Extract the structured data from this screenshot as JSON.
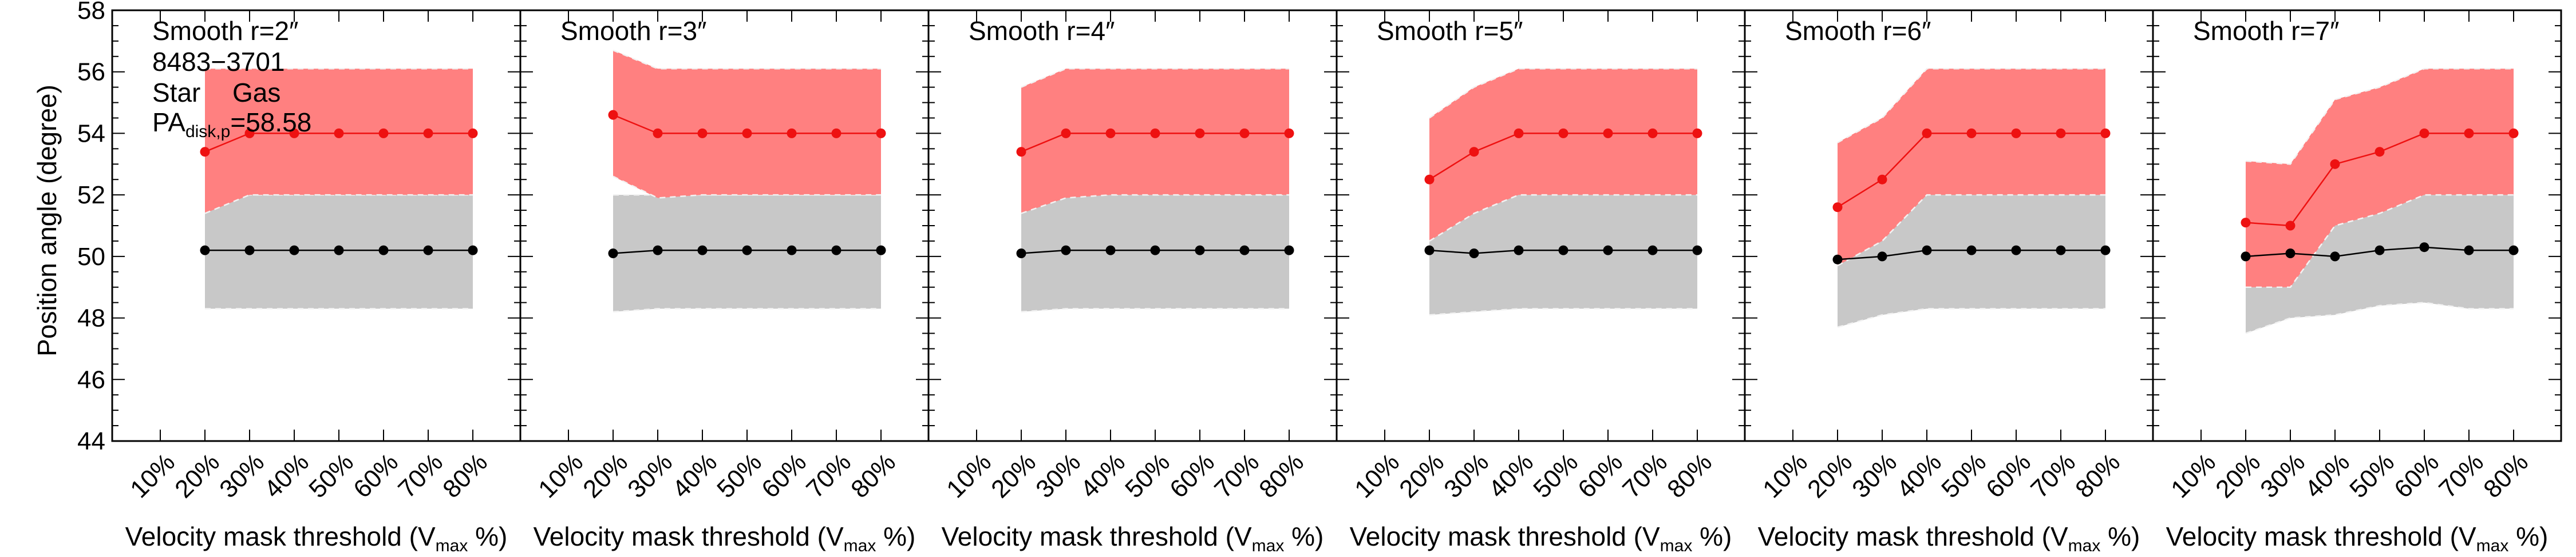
{
  "chart_data": {
    "type": "line",
    "layout": "6 panels side by side, shared y axis",
    "x_categories": [
      "10%",
      "20%",
      "30%",
      "40%",
      "50%",
      "60%",
      "70%",
      "80%"
    ],
    "xlabel_prefix": "Velocity mask threshold (V",
    "xlabel_sub": "max",
    "xlabel_suffix": " %)",
    "ylabel": "Position angle (degree)",
    "ylim": [
      44,
      58
    ],
    "yticks": [
      "44",
      "46",
      "48",
      "50",
      "52",
      "54",
      "56",
      "58"
    ],
    "annotations": {
      "galaxy_id": "8483−3701",
      "star_label": "Star",
      "gas_label": "Gas",
      "pa_prefix": "PA",
      "pa_sub": "disk,p",
      "pa_suffix": "=58.58"
    },
    "colors": {
      "star": "#000000",
      "star_band": "#c8c8c8",
      "gas": "#ee1111",
      "gas_band": "#ff8080",
      "dashed": "#f2f2f2"
    },
    "panels": [
      {
        "title": "Smooth r=2″",
        "star": {
          "x": [
            "20%",
            "30%",
            "40%",
            "50%",
            "60%",
            "70%",
            "80%"
          ],
          "values": [
            50.2,
            50.2,
            50.2,
            50.2,
            50.2,
            50.2,
            50.2
          ],
          "band_low": [
            48.3,
            48.3,
            48.3,
            48.3,
            48.3,
            48.3,
            48.3
          ],
          "band_high": [
            52.0,
            52.0,
            52.0,
            52.0,
            52.0,
            52.0,
            52.0
          ]
        },
        "gas": {
          "x": [
            "20%",
            "30%",
            "40%",
            "50%",
            "60%",
            "70%",
            "80%"
          ],
          "values": [
            53.4,
            54.0,
            54.0,
            54.0,
            54.0,
            54.0,
            54.0
          ],
          "band_low": [
            51.4,
            52.0,
            52.0,
            52.0,
            52.0,
            52.0,
            52.0
          ],
          "band_high": [
            56.1,
            56.1,
            56.1,
            56.1,
            56.1,
            56.1,
            56.1
          ]
        }
      },
      {
        "title": "Smooth r=3″",
        "star": {
          "x": [
            "20%",
            "30%",
            "40%",
            "50%",
            "60%",
            "70%",
            "80%"
          ],
          "values": [
            50.1,
            50.2,
            50.2,
            50.2,
            50.2,
            50.2,
            50.2
          ],
          "band_low": [
            48.2,
            48.3,
            48.3,
            48.3,
            48.3,
            48.3,
            48.3
          ],
          "band_high": [
            52.0,
            52.0,
            52.0,
            52.0,
            52.0,
            52.0,
            52.0
          ]
        },
        "gas": {
          "x": [
            "20%",
            "30%",
            "40%",
            "50%",
            "60%",
            "70%",
            "80%"
          ],
          "values": [
            54.6,
            54.0,
            54.0,
            54.0,
            54.0,
            54.0,
            54.0
          ],
          "band_low": [
            52.6,
            51.9,
            52.0,
            52.0,
            52.0,
            52.0,
            52.0
          ],
          "band_high": [
            56.7,
            56.1,
            56.1,
            56.1,
            56.1,
            56.1,
            56.1
          ]
        }
      },
      {
        "title": "Smooth r=4″",
        "star": {
          "x": [
            "20%",
            "30%",
            "40%",
            "50%",
            "60%",
            "70%",
            "80%"
          ],
          "values": [
            50.1,
            50.2,
            50.2,
            50.2,
            50.2,
            50.2,
            50.2
          ],
          "band_low": [
            48.2,
            48.3,
            48.3,
            48.3,
            48.3,
            48.3,
            48.3
          ],
          "band_high": [
            51.6,
            52.0,
            52.0,
            52.0,
            52.0,
            52.0,
            52.0
          ]
        },
        "gas": {
          "x": [
            "20%",
            "30%",
            "40%",
            "50%",
            "60%",
            "70%",
            "80%"
          ],
          "values": [
            53.4,
            54.0,
            54.0,
            54.0,
            54.0,
            54.0,
            54.0
          ],
          "band_low": [
            51.4,
            51.9,
            52.0,
            52.0,
            52.0,
            52.0,
            52.0
          ],
          "band_high": [
            55.5,
            56.1,
            56.1,
            56.1,
            56.1,
            56.1,
            56.1
          ]
        }
      },
      {
        "title": "Smooth r=5″",
        "star": {
          "x": [
            "20%",
            "30%",
            "40%",
            "50%",
            "60%",
            "70%",
            "80%"
          ],
          "values": [
            50.2,
            50.1,
            50.2,
            50.2,
            50.2,
            50.2,
            50.2
          ],
          "band_low": [
            48.1,
            48.2,
            48.3,
            48.3,
            48.3,
            48.3,
            48.3
          ],
          "band_high": [
            50.5,
            51.4,
            52.0,
            52.0,
            52.0,
            52.0,
            52.0
          ]
        },
        "gas": {
          "x": [
            "20%",
            "30%",
            "40%",
            "50%",
            "60%",
            "70%",
            "80%"
          ],
          "values": [
            52.5,
            53.4,
            54.0,
            54.0,
            54.0,
            54.0,
            54.0
          ],
          "band_low": [
            50.5,
            51.4,
            52.0,
            52.0,
            52.0,
            52.0,
            52.0
          ],
          "band_high": [
            54.5,
            55.5,
            56.1,
            56.1,
            56.1,
            56.1,
            56.1
          ]
        }
      },
      {
        "title": "Smooth r=6″",
        "star": {
          "x": [
            "20%",
            "30%",
            "40%",
            "50%",
            "60%",
            "70%",
            "80%"
          ],
          "values": [
            49.9,
            50.0,
            50.2,
            50.2,
            50.2,
            50.2,
            50.2
          ],
          "band_low": [
            47.7,
            48.1,
            48.3,
            48.3,
            48.3,
            48.3,
            48.3
          ],
          "band_high": [
            49.7,
            50.5,
            52.0,
            52.0,
            52.0,
            52.0,
            52.0
          ]
        },
        "gas": {
          "x": [
            "20%",
            "30%",
            "40%",
            "50%",
            "60%",
            "70%",
            "80%"
          ],
          "values": [
            51.6,
            52.5,
            54.0,
            54.0,
            54.0,
            54.0,
            54.0
          ],
          "band_low": [
            49.7,
            50.5,
            52.0,
            52.0,
            52.0,
            52.0,
            52.0
          ],
          "band_high": [
            53.7,
            54.5,
            56.1,
            56.1,
            56.1,
            56.1,
            56.1
          ]
        }
      },
      {
        "title": "Smooth r=7″",
        "star": {
          "x": [
            "20%",
            "30%",
            "40%",
            "50%",
            "60%",
            "70%",
            "80%"
          ],
          "values": [
            50.0,
            50.1,
            50.0,
            50.2,
            50.3,
            50.2,
            50.2
          ],
          "band_low": [
            47.5,
            48.0,
            48.1,
            48.4,
            48.5,
            48.3,
            48.3
          ],
          "band_high": [
            49.0,
            49.0,
            51.0,
            51.4,
            52.0,
            52.0,
            52.0
          ]
        },
        "gas": {
          "x": [
            "20%",
            "30%",
            "40%",
            "50%",
            "60%",
            "70%",
            "80%"
          ],
          "values": [
            51.1,
            51.0,
            53.0,
            53.4,
            54.0,
            54.0,
            54.0
          ],
          "band_low": [
            49.0,
            49.0,
            51.0,
            51.4,
            52.0,
            52.0,
            52.0
          ],
          "band_high": [
            53.1,
            53.0,
            55.1,
            55.5,
            56.1,
            56.1,
            56.1
          ]
        }
      }
    ]
  }
}
